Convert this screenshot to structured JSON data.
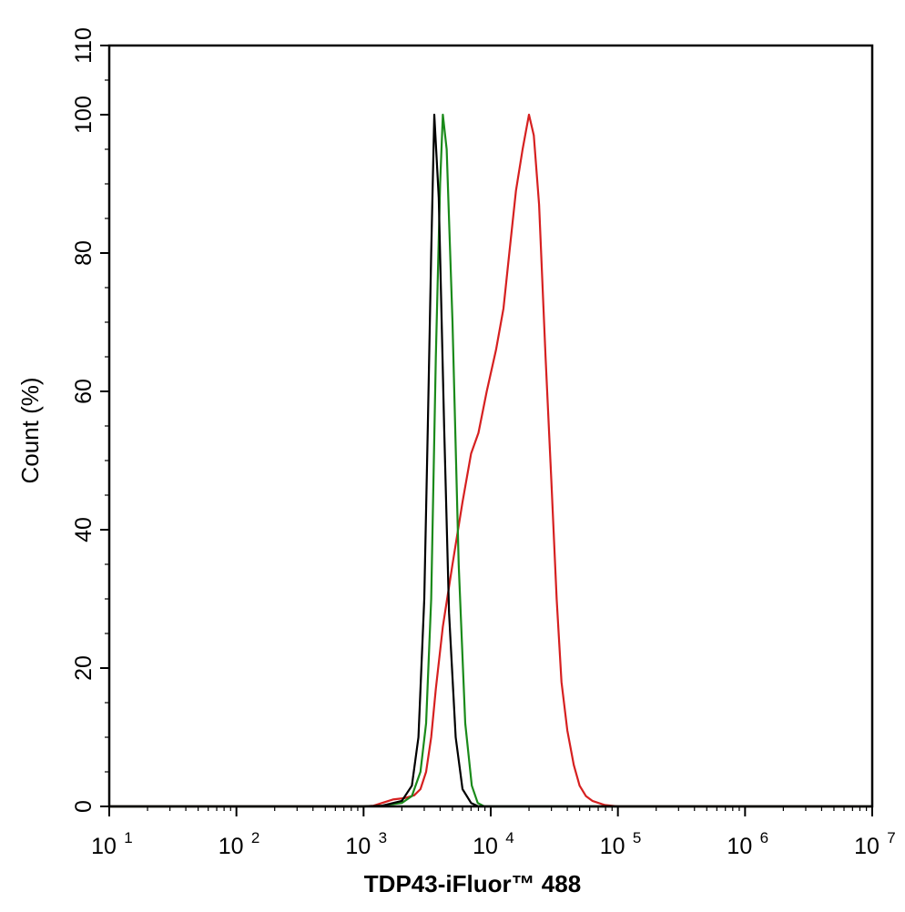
{
  "chart_data": {
    "type": "line",
    "title": "",
    "xlabel": "TDP43-iFluor™ 488",
    "ylabel": "Count  (%)",
    "xscale": "log",
    "xlim": [
      10,
      10000000
    ],
    "ylim": [
      0,
      110
    ],
    "grid": false,
    "x_ticks": [
      {
        "value": 10,
        "base": "10",
        "exp": "1"
      },
      {
        "value": 100,
        "base": "10",
        "exp": "2"
      },
      {
        "value": 1000,
        "base": "10",
        "exp": "3"
      },
      {
        "value": 10000,
        "base": "10",
        "exp": "4"
      },
      {
        "value": 100000,
        "base": "10",
        "exp": "5"
      },
      {
        "value": 1000000,
        "base": "10",
        "exp": "6"
      },
      {
        "value": 10000000,
        "base": "10",
        "exp": "7"
      }
    ],
    "y_ticks": [
      0,
      20,
      40,
      60,
      80,
      100,
      110
    ],
    "series": [
      {
        "color": "#d62020",
        "points": [
          [
            10,
            0
          ],
          [
            1000,
            0
          ],
          [
            1200,
            0.1
          ],
          [
            1400,
            0.5
          ],
          [
            1700,
            1.0
          ],
          [
            2100,
            1.2
          ],
          [
            2500,
            1.6
          ],
          [
            2800,
            2.5
          ],
          [
            3100,
            5
          ],
          [
            3400,
            10
          ],
          [
            3700,
            17
          ],
          [
            4200,
            26
          ],
          [
            5000,
            35
          ],
          [
            6000,
            44
          ],
          [
            7000,
            51
          ],
          [
            8000,
            54
          ],
          [
            9300,
            60
          ],
          [
            11000,
            66
          ],
          [
            12600,
            72
          ],
          [
            14000,
            80
          ],
          [
            15800,
            89
          ],
          [
            17800,
            95
          ],
          [
            20000,
            100
          ],
          [
            21800,
            97
          ],
          [
            24000,
            87
          ],
          [
            27000,
            65
          ],
          [
            30000,
            47
          ],
          [
            33000,
            30
          ],
          [
            36000,
            18
          ],
          [
            40000,
            11
          ],
          [
            45000,
            6
          ],
          [
            50000,
            3
          ],
          [
            56000,
            1.5
          ],
          [
            63000,
            0.8
          ],
          [
            79000,
            0.2
          ],
          [
            100000,
            0
          ],
          [
            10000000,
            0
          ]
        ]
      },
      {
        "color": "#1a8a1a",
        "points": [
          [
            10,
            0
          ],
          [
            1000,
            0
          ],
          [
            1400,
            0.1
          ],
          [
            2000,
            0.5
          ],
          [
            2400,
            1.5
          ],
          [
            2800,
            5
          ],
          [
            3100,
            12
          ],
          [
            3400,
            30
          ],
          [
            3700,
            65
          ],
          [
            4000,
            90
          ],
          [
            4200,
            100
          ],
          [
            4500,
            95
          ],
          [
            5000,
            70
          ],
          [
            5600,
            35
          ],
          [
            6300,
            12
          ],
          [
            7100,
            3
          ],
          [
            7900,
            0.5
          ],
          [
            8900,
            0
          ],
          [
            10000000,
            0
          ]
        ]
      },
      {
        "color": "#000000",
        "points": [
          [
            10,
            0
          ],
          [
            1000,
            0
          ],
          [
            1400,
            0.1
          ],
          [
            2000,
            0.8
          ],
          [
            2400,
            3
          ],
          [
            2700,
            10
          ],
          [
            3000,
            30
          ],
          [
            3200,
            55
          ],
          [
            3400,
            80
          ],
          [
            3600,
            100
          ],
          [
            3900,
            88
          ],
          [
            4300,
            55
          ],
          [
            4700,
            28
          ],
          [
            5300,
            10
          ],
          [
            6000,
            2.5
          ],
          [
            7000,
            0.5
          ],
          [
            8000,
            0
          ],
          [
            10000000,
            0
          ]
        ]
      }
    ]
  }
}
